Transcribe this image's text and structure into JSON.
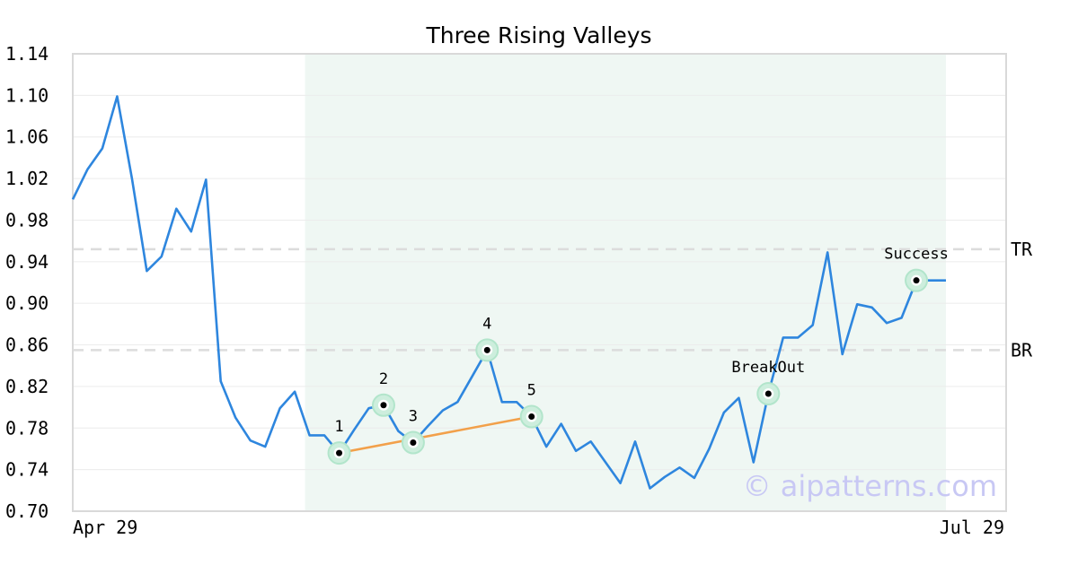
{
  "chart_data": {
    "type": "line",
    "title": "Three Rising Valleys",
    "xlabel": "",
    "ylabel": "",
    "ylim": [
      0.7,
      1.14
    ],
    "y_ticks": [
      "0.70",
      "0.74",
      "0.78",
      "0.82",
      "0.86",
      "0.90",
      "0.94",
      "0.98",
      "1.02",
      "1.06",
      "1.10",
      "1.14"
    ],
    "x_tick_labels": [
      {
        "index": 0,
        "label": "Apr 29"
      },
      {
        "index": 63,
        "label": "Jul 29"
      }
    ],
    "grid": true,
    "line_color": "#2e86de",
    "series": [
      {
        "values": [
          1.0,
          1.029,
          1.049,
          1.099,
          1.02,
          0.931,
          0.945,
          0.991,
          0.969,
          1.019,
          0.825,
          0.79,
          0.768,
          0.762,
          0.799,
          0.815,
          0.773,
          0.773,
          0.756,
          0.778,
          0.799,
          0.802,
          0.777,
          0.766,
          0.782,
          0.797,
          0.805,
          0.83,
          0.855,
          0.805,
          0.805,
          0.791,
          0.762,
          0.784,
          0.758,
          0.767,
          0.747,
          0.727,
          0.767,
          0.722,
          0.733,
          0.742,
          0.732,
          0.76,
          0.795,
          0.809,
          0.747,
          0.813,
          0.867,
          0.867,
          0.879,
          0.949,
          0.851,
          0.899,
          0.896,
          0.881,
          0.886,
          0.922,
          0.922,
          0.922
        ]
      }
    ],
    "highlight_region": {
      "from_index": 16,
      "to_index": 59,
      "color": "#eff7f3"
    },
    "levels": [
      {
        "name": "TR",
        "value": 0.952
      },
      {
        "name": "BR",
        "value": 0.855
      }
    ],
    "points": [
      {
        "label": "1",
        "index": 18,
        "value": 0.756
      },
      {
        "label": "2",
        "index": 21,
        "value": 0.802
      },
      {
        "label": "3",
        "index": 23,
        "value": 0.766
      },
      {
        "label": "4",
        "index": 28,
        "value": 0.855
      },
      {
        "label": "5",
        "index": 31,
        "value": 0.791
      },
      {
        "label": "BreakOut",
        "index": 47,
        "value": 0.813
      },
      {
        "label": "Success",
        "index": 57,
        "value": 0.922
      }
    ],
    "trendline": {
      "from_index": 18,
      "from_value": 0.756,
      "to_index": 31,
      "to_value": 0.791,
      "color": "#f2a04a"
    },
    "watermark": "© aipatterns.com"
  }
}
